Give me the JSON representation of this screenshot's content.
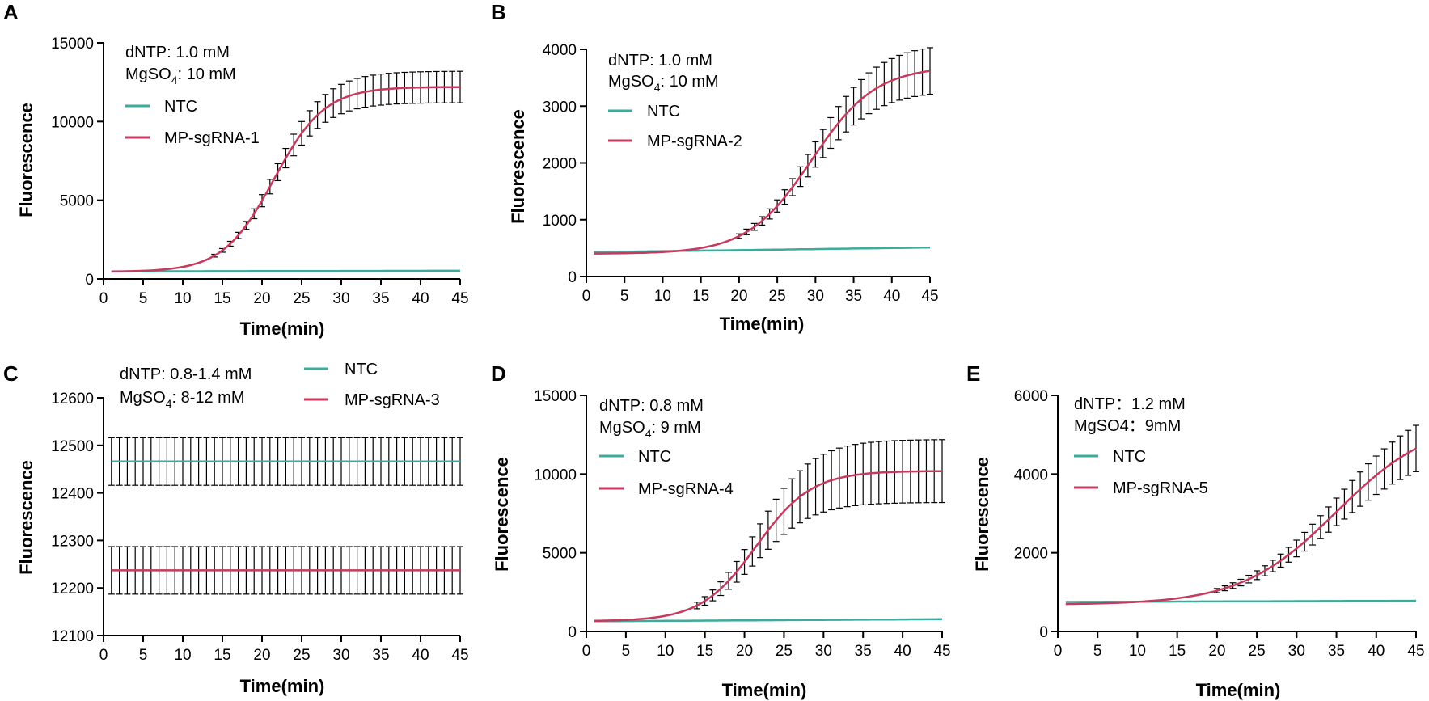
{
  "colors": {
    "ntc": "#3aab9c",
    "sample": "#c53a5e",
    "axis": "#000000",
    "errorbar": "#000000"
  },
  "chart_data": [
    {
      "panel": "A",
      "type": "line",
      "annotation": [
        "dNTP: 1.0 mM",
        "MgSO4: 10 mM"
      ],
      "xlabel": "Time(min)",
      "ylabel": "Fluorescence",
      "xlim": [
        0,
        45
      ],
      "ylim": [
        0,
        15000
      ],
      "xticks": [
        0,
        5,
        10,
        15,
        20,
        25,
        30,
        35,
        40,
        45
      ],
      "yticks": [
        0,
        5000,
        10000,
        15000
      ],
      "curve": "sigmoid",
      "series": [
        {
          "name": "NTC",
          "color": "ntc",
          "start": 480,
          "end": 520
        },
        {
          "name": "MP-sgRNA-1",
          "color": "sample",
          "baseline": 450,
          "plateau": 12200,
          "midpoint": 21.5,
          "slope": 3.2,
          "error_max": 1000,
          "error_from": 13
        }
      ]
    },
    {
      "panel": "B",
      "type": "line",
      "annotation": [
        "dNTP: 1.0 mM",
        "MgSO4: 10 mM"
      ],
      "xlabel": "Time(min)",
      "ylabel": "Fluorescence",
      "xlim": [
        0,
        45
      ],
      "ylim": [
        0,
        4000
      ],
      "xticks": [
        0,
        5,
        10,
        15,
        20,
        25,
        30,
        35,
        40,
        45
      ],
      "yticks": [
        0,
        1000,
        2000,
        3000,
        4000
      ],
      "curve": "sigmoid",
      "series": [
        {
          "name": "NTC",
          "color": "ntc",
          "start": 430,
          "end": 510
        },
        {
          "name": "MP-sgRNA-2",
          "color": "sample",
          "baseline": 400,
          "plateau": 3700,
          "midpoint": 29.5,
          "slope": 4.2,
          "error_max": 420,
          "error_from": 20
        }
      ]
    },
    {
      "panel": "C",
      "type": "line",
      "annotation": [
        "dNTP: 0.8-1.4 mM",
        "MgSO4: 8-12 mM"
      ],
      "xlabel": "Time(min)",
      "ylabel": "Fluorescence",
      "xlim": [
        0,
        45
      ],
      "ylim": [
        12100,
        12600
      ],
      "xticks": [
        0,
        5,
        10,
        15,
        20,
        25,
        30,
        35,
        40,
        45
      ],
      "yticks": [
        12100,
        12200,
        12300,
        12400,
        12500,
        12600
      ],
      "curve": "flat",
      "series": [
        {
          "name": "NTC",
          "color": "ntc",
          "start": 12466,
          "end": 12466,
          "error_const": 50
        },
        {
          "name": "MP-sgRNA-3",
          "color": "sample",
          "start": 12237,
          "end": 12237,
          "error_const": 50
        }
      ]
    },
    {
      "panel": "D",
      "type": "line",
      "annotation": [
        "dNTP: 0.8 mM",
        "MgSO4: 9 mM"
      ],
      "xlabel": "Time(min)",
      "ylabel": "Fluorescence",
      "xlim": [
        0,
        45
      ],
      "ylim": [
        0,
        15000
      ],
      "xticks": [
        0,
        5,
        10,
        15,
        20,
        25,
        30,
        35,
        40,
        45
      ],
      "yticks": [
        0,
        5000,
        10000,
        15000
      ],
      "curve": "sigmoid",
      "series": [
        {
          "name": "NTC",
          "color": "ntc",
          "start": 650,
          "end": 780
        },
        {
          "name": "MP-sgRNA-4",
          "color": "sample",
          "baseline": 650,
          "plateau": 10200,
          "midpoint": 21.5,
          "slope": 3.5,
          "error_max": 2000,
          "error_from": 14
        }
      ]
    },
    {
      "panel": "E",
      "type": "line",
      "annotation": [
        "dNTP：1.2 mM",
        "MgSO4：9mM"
      ],
      "xlabel": "Time(min)",
      "ylabel": "Fluorescence",
      "xlim": [
        0,
        45
      ],
      "ylim": [
        0,
        6000
      ],
      "xticks": [
        0,
        5,
        10,
        15,
        20,
        25,
        30,
        35,
        40,
        45
      ],
      "yticks": [
        0,
        2000,
        4000,
        6000
      ],
      "curve": "sigmoid",
      "series": [
        {
          "name": "NTC",
          "color": "ntc",
          "start": 750,
          "end": 780
        },
        {
          "name": "MP-sgRNA-5",
          "color": "sample",
          "baseline": 680,
          "plateau": 5400,
          "midpoint": 35,
          "slope": 6,
          "error_max": 700,
          "error_from": 20
        }
      ]
    }
  ]
}
